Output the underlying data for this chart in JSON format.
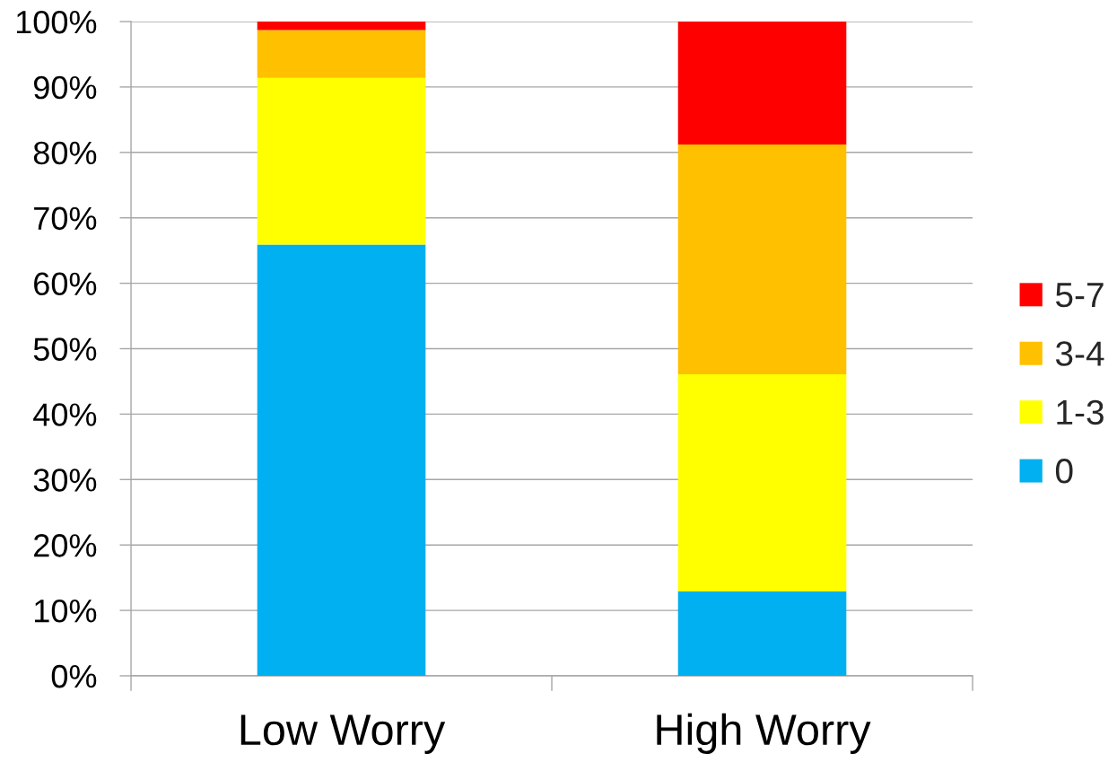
{
  "chart_data": {
    "type": "bar",
    "stacked": true,
    "categories": [
      "Low Worry",
      "High Worry"
    ],
    "series": [
      {
        "name": "0",
        "color": "#00b0f0",
        "values": [
          65.9,
          12.9
        ]
      },
      {
        "name": "1-3",
        "color": "#ffff00",
        "values": [
          25.5,
          33.2
        ]
      },
      {
        "name": "3-4",
        "color": "#ffc000",
        "values": [
          7.3,
          35.1
        ]
      },
      {
        "name": "5-7",
        "color": "#ff0000",
        "values": [
          1.3,
          18.8
        ]
      }
    ],
    "ylim": [
      0,
      100
    ],
    "yticks": [
      {
        "value": 0,
        "label": "0%"
      },
      {
        "value": 10,
        "label": "10%"
      },
      {
        "value": 20,
        "label": "20%"
      },
      {
        "value": 30,
        "label": "30%"
      },
      {
        "value": 40,
        "label": "40%"
      },
      {
        "value": 50,
        "label": "50%"
      },
      {
        "value": 60,
        "label": "60%"
      },
      {
        "value": 70,
        "label": "70%"
      },
      {
        "value": 80,
        "label": "80%"
      },
      {
        "value": 90,
        "label": "90%"
      },
      {
        "value": 100,
        "label": "100%"
      }
    ],
    "grid": "y",
    "legend": "right"
  }
}
